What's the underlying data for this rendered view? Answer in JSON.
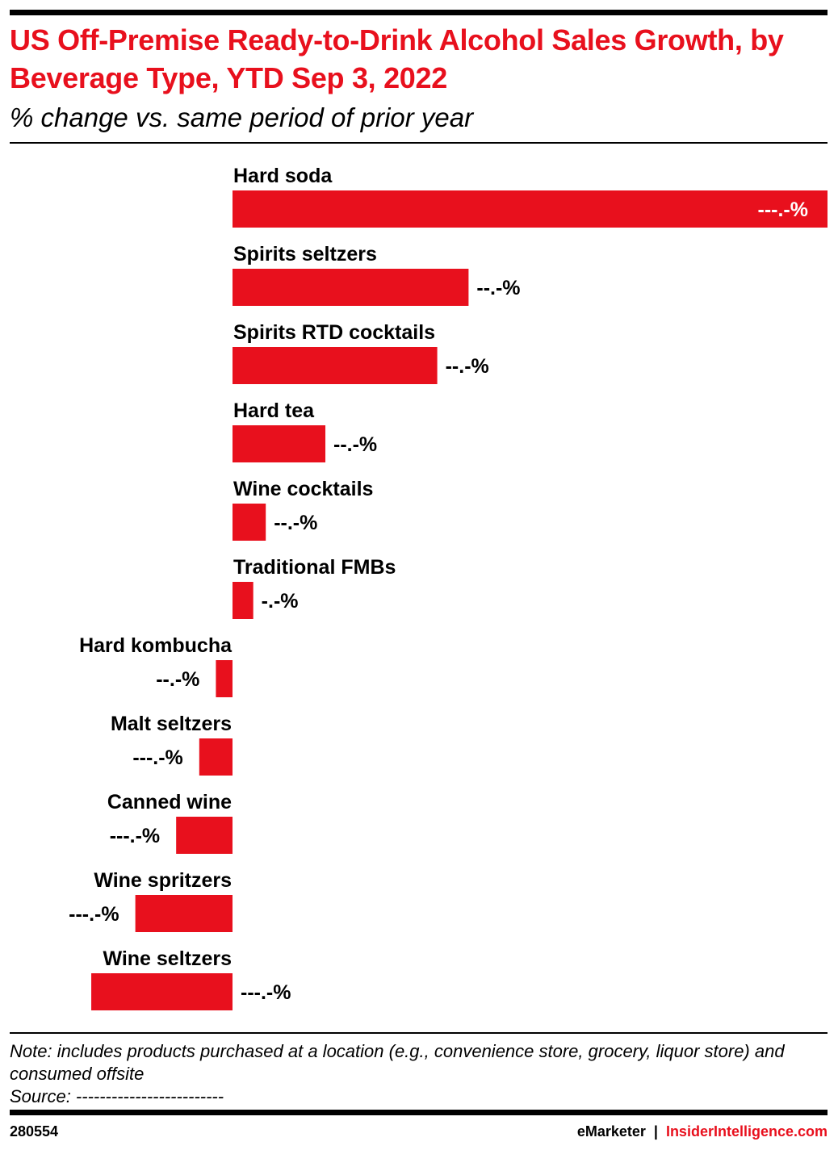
{
  "header": {
    "title": "US Off-Premise Ready-to-Drink Alcohol Sales Growth, by Beverage Type, YTD Sep 3, 2022",
    "subtitle": "% change vs. same period of prior year"
  },
  "chart_data": {
    "type": "bar",
    "orientation": "horizontal",
    "title": "US Off-Premise Ready-to-Drink Alcohol Sales Growth, by Beverage Type, YTD Sep 3, 2022",
    "subtitle": "% change vs. same period of prior year",
    "categories": [
      "Hard soda",
      "Spirits seltzers",
      "Spirits RTD cocktails",
      "Hard tea",
      "Wine cocktails",
      "Traditional FMBs",
      "Hard kombucha",
      "Malt seltzers",
      "Canned wine",
      "Wine spritzers",
      "Wine seltzers"
    ],
    "values": [
      275.5,
      109.3,
      94.8,
      43.0,
      15.4,
      9.6,
      -7.7,
      -15.4,
      -26.1,
      -45.0,
      -65.4
    ],
    "value_labels": [
      "---.-%",
      "--.-%",
      "--.-%",
      "--.-%",
      "--.-%",
      "-.-%",
      "--.-%",
      "---.-%",
      "---.-%",
      "---.-%",
      "---.-%"
    ],
    "xlim": [
      -107,
      275.5
    ],
    "bar_color": "#e8101d",
    "grid": false,
    "legend": "none"
  },
  "footer": {
    "note": "Note: includes products purchased at a location (e.g., convenience store, grocery, liquor store) and consumed offsite",
    "source": "Source: -------------------------",
    "chart_id": "280554",
    "brand_emarketer": "eMarketer",
    "brand_separator": "|",
    "brand_insider": "InsiderIntelligence.com"
  }
}
